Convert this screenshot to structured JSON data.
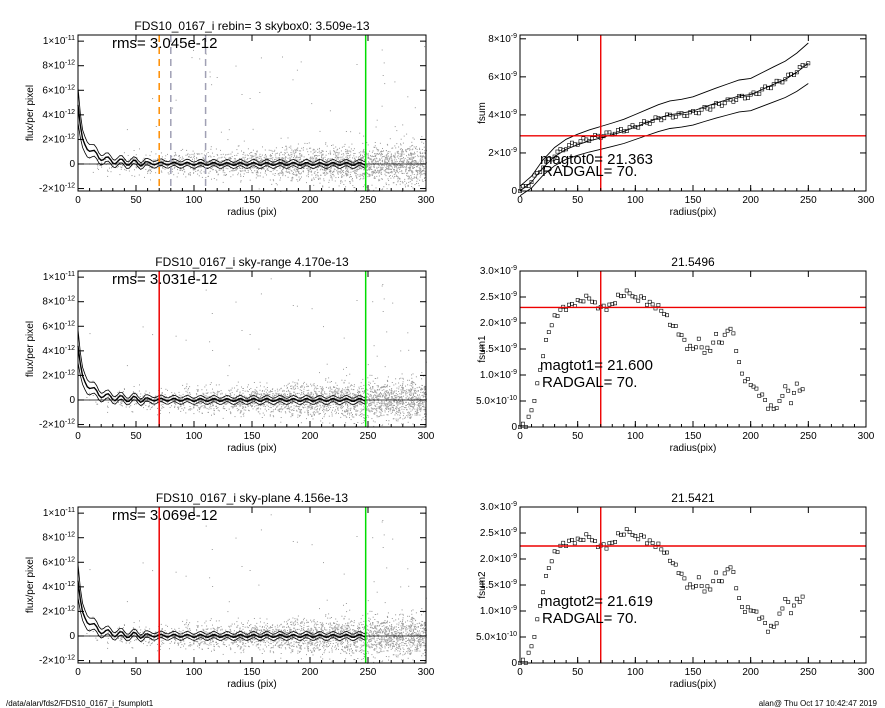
{
  "chart_data": [
    {
      "type": "scatter",
      "title": "FDS10_0167_i rebin= 3    skybox0:  3.509e-13",
      "annotation": "rms= 3.045e-12",
      "xlabel": "radius (pix)",
      "ylabel": "flux/per pixel",
      "xlim": [
        0,
        300
      ],
      "ylim": [
        -2.2e-12,
        1.05e-11
      ],
      "xticks": [
        "0",
        "50",
        "100",
        "150",
        "200",
        "250",
        "300"
      ],
      "yticks": [
        {
          "v": 1e-11,
          "m": "1×10",
          "e": "-11"
        },
        {
          "v": 8e-12,
          "m": "8×10",
          "e": "-12"
        },
        {
          "v": 6e-12,
          "m": "6×10",
          "e": "-12"
        },
        {
          "v": 4e-12,
          "m": "4×10",
          "e": "-12"
        },
        {
          "v": 2e-12,
          "m": "2×10",
          "e": "-12"
        },
        {
          "v": 0,
          "m": "0",
          "e": ""
        },
        {
          "v": -2e-12,
          "m": "-2×10",
          "e": "-12"
        }
      ],
      "vlines": [
        {
          "x": 70,
          "color": "#ff8c00",
          "dash": true
        },
        {
          "x": 80,
          "color": "#a0a0b4",
          "dash": true
        },
        {
          "x": 110,
          "color": "#a0a0b4",
          "dash": true
        },
        {
          "x": 248,
          "color": "#00dd00",
          "dash": false
        }
      ],
      "profile": {
        "x": [
          0,
          3,
          6,
          9,
          12,
          15,
          18,
          21,
          24,
          27,
          30,
          35,
          40,
          45,
          50,
          60,
          70,
          80,
          90,
          100,
          120,
          150,
          180,
          210,
          248
        ],
        "y": [
          4.8e-12,
          2e-12,
          1.6e-12,
          1.3e-12,
          1e-12,
          8e-13,
          6e-13,
          5e-13,
          4e-13,
          3e-13,
          2.5e-13,
          2e-13,
          1.5e-13,
          1e-13,
          8e-14,
          6e-14,
          4e-14,
          3e-14,
          2e-14,
          1e-14,
          0,
          0,
          0,
          0,
          0
        ]
      },
      "noise_sigma": 3.045e-12
    },
    {
      "type": "line",
      "title": "",
      "annotation": [
        "magtot0=  21.363",
        "RADGAL=     70."
      ],
      "xlabel": "radius(pix)",
      "ylabel": "fsum",
      "xlim": [
        0,
        300
      ],
      "ylim": [
        0,
        8.2e-09
      ],
      "xticks": [
        "0",
        "50",
        "100",
        "150",
        "200",
        "250",
        "300"
      ],
      "yticks": [
        {
          "v": 8e-09,
          "m": "8×10",
          "e": "-9"
        },
        {
          "v": 6e-09,
          "m": "6×10",
          "e": "-9"
        },
        {
          "v": 4e-09,
          "m": "4×10",
          "e": "-9"
        },
        {
          "v": 2e-09,
          "m": "2×10",
          "e": "-9"
        },
        {
          "v": 0,
          "m": "0",
          "e": ""
        }
      ],
      "hline": 2.9e-09,
      "vline": 70,
      "series": [
        {
          "x": [
            0,
            10,
            20,
            30,
            40,
            50,
            60,
            70,
            80,
            90,
            100,
            110,
            120,
            130,
            140,
            150,
            160,
            170,
            180,
            190,
            200,
            210,
            220,
            230,
            240,
            250
          ],
          "y": [
            0,
            5e-10,
            1.3e-09,
            1.9e-09,
            2.3e-09,
            2.55e-09,
            2.75e-09,
            2.9e-09,
            3.05e-09,
            3.2e-09,
            3.4e-09,
            3.6e-09,
            3.8e-09,
            3.95e-09,
            4e-09,
            4.1e-09,
            4.3e-09,
            4.5e-09,
            4.7e-09,
            4.9e-09,
            5e-09,
            5.3e-09,
            5.6e-09,
            5.9e-09,
            6.3e-09,
            6.8e-09
          ]
        }
      ]
    },
    {
      "type": "scatter",
      "title": "FDS10_0167_i sky-range  4.170e-13",
      "annotation": "rms= 3.031e-12",
      "xlabel": "radius (pix)",
      "ylabel": "flux/per pixel",
      "xlim": [
        0,
        300
      ],
      "ylim": [
        -2.2e-12,
        1.05e-11
      ],
      "xticks": [
        "0",
        "50",
        "100",
        "150",
        "200",
        "250",
        "300"
      ],
      "yticks": [
        {
          "v": 1e-11,
          "m": "1×10",
          "e": "-11"
        },
        {
          "v": 8e-12,
          "m": "8×10",
          "e": "-12"
        },
        {
          "v": 6e-12,
          "m": "6×10",
          "e": "-12"
        },
        {
          "v": 4e-12,
          "m": "4×10",
          "e": "-12"
        },
        {
          "v": 2e-12,
          "m": "2×10",
          "e": "-12"
        },
        {
          "v": 0,
          "m": "0",
          "e": ""
        },
        {
          "v": -2e-12,
          "m": "-2×10",
          "e": "-12"
        }
      ],
      "vlines": [
        {
          "x": 70,
          "color": "#ee0000",
          "dash": false
        },
        {
          "x": 248,
          "color": "#00dd00",
          "dash": false
        }
      ],
      "profile": {
        "x": [
          0,
          3,
          6,
          9,
          12,
          15,
          18,
          21,
          24,
          27,
          30,
          35,
          40,
          45,
          50,
          60,
          70,
          80,
          90,
          100,
          120,
          150,
          180,
          210,
          248
        ],
        "y": [
          4.4e-12,
          1.9e-12,
          1.5e-12,
          1.2e-12,
          9e-13,
          7e-13,
          5e-13,
          4e-13,
          3e-13,
          2.5e-13,
          2e-13,
          1.5e-13,
          1e-13,
          8e-14,
          6e-14,
          4e-14,
          3e-14,
          2e-14,
          1e-14,
          0,
          0,
          0,
          0,
          0,
          0
        ]
      },
      "noise_sigma": 3.031e-12
    },
    {
      "type": "scatter",
      "title": "21.5496",
      "annotation": [
        "magtot1=  21.600",
        "RADGAL=     70."
      ],
      "xlabel": "radius(pix)",
      "ylabel": "fsum1",
      "xlim": [
        0,
        300
      ],
      "ylim": [
        0,
        3e-09
      ],
      "xticks": [
        "0",
        "50",
        "100",
        "150",
        "200",
        "250",
        "300"
      ],
      "yticks": [
        {
          "v": 3e-09,
          "m": "3.0×10",
          "e": "-9"
        },
        {
          "v": 2.5e-09,
          "m": "2.5×10",
          "e": "-9"
        },
        {
          "v": 2e-09,
          "m": "2.0×10",
          "e": "-9"
        },
        {
          "v": 1.5e-09,
          "m": "1.5×10",
          "e": "-9"
        },
        {
          "v": 1e-09,
          "m": "1.0×10",
          "e": "-9"
        },
        {
          "v": 5e-10,
          "m": "5.0×10",
          "e": "-10"
        },
        {
          "v": 0,
          "m": "0",
          "e": ""
        }
      ],
      "hline": 2.3e-09,
      "vline": 70,
      "series": [
        {
          "x": [
            0,
            5,
            10,
            15,
            20,
            25,
            30,
            35,
            40,
            45,
            50,
            55,
            60,
            65,
            70,
            75,
            80,
            85,
            90,
            95,
            100,
            105,
            110,
            115,
            120,
            125,
            130,
            135,
            140,
            145,
            150,
            155,
            160,
            165,
            170,
            175,
            180,
            185,
            190,
            195,
            200,
            205,
            210,
            215,
            220,
            225,
            230,
            235,
            240,
            245
          ],
          "y": [
            0,
            5e-11,
            3e-10,
            8e-10,
            1.4e-09,
            1.85e-09,
            2.1e-09,
            2.25e-09,
            2.3e-09,
            2.35e-09,
            2.4e-09,
            2.45e-09,
            2.5e-09,
            2.35e-09,
            2.3e-09,
            2.3e-09,
            2.35e-09,
            2.5e-09,
            2.55e-09,
            2.6e-09,
            2.45e-09,
            2.5e-09,
            2.4e-09,
            2.35e-09,
            2.3e-09,
            2.2e-09,
            2e-09,
            1.9e-09,
            1.75e-09,
            1.55e-09,
            1.5e-09,
            1.65e-09,
            1.45e-09,
            1.5e-09,
            1.75e-09,
            1.6e-09,
            1.9e-09,
            1.8e-09,
            1.2e-09,
            9e-10,
            8.5e-10,
            7e-10,
            6e-10,
            4e-10,
            3.5e-10,
            4.5e-10,
            8e-10,
            5e-10,
            8e-10,
            7e-10
          ]
        }
      ]
    },
    {
      "type": "scatter",
      "title": "FDS10_0167_i sky-plane  4.156e-13",
      "annotation": "rms= 3.069e-12",
      "xlabel": "radius (pix)",
      "ylabel": "flux/per pixel",
      "xlim": [
        0,
        300
      ],
      "ylim": [
        -2.2e-12,
        1.05e-11
      ],
      "xticks": [
        "0",
        "50",
        "100",
        "150",
        "200",
        "250",
        "300"
      ],
      "yticks": [
        {
          "v": 1e-11,
          "m": "1×10",
          "e": "-11"
        },
        {
          "v": 8e-12,
          "m": "8×10",
          "e": "-12"
        },
        {
          "v": 6e-12,
          "m": "6×10",
          "e": "-12"
        },
        {
          "v": 4e-12,
          "m": "4×10",
          "e": "-12"
        },
        {
          "v": 2e-12,
          "m": "2×10",
          "e": "-12"
        },
        {
          "v": 0,
          "m": "0",
          "e": ""
        },
        {
          "v": -2e-12,
          "m": "-2×10",
          "e": "-12"
        }
      ],
      "vlines": [
        {
          "x": 70,
          "color": "#ee0000",
          "dash": false
        },
        {
          "x": 248,
          "color": "#00dd00",
          "dash": false
        }
      ],
      "profile": {
        "x": [
          0,
          3,
          6,
          9,
          12,
          15,
          18,
          21,
          24,
          27,
          30,
          35,
          40,
          45,
          50,
          60,
          70,
          80,
          90,
          100,
          120,
          150,
          180,
          210,
          248
        ],
        "y": [
          4.5e-12,
          1.9e-12,
          1.5e-12,
          1.2e-12,
          9e-13,
          7e-13,
          5e-13,
          4e-13,
          3e-13,
          2.5e-13,
          2e-13,
          1.5e-13,
          1e-13,
          8e-14,
          6e-14,
          4e-14,
          3e-14,
          2e-14,
          1e-14,
          0,
          0,
          0,
          0,
          0,
          0
        ]
      },
      "noise_sigma": 3.069e-12
    },
    {
      "type": "scatter",
      "title": "21.5421",
      "annotation": [
        "magtot2=  21.619",
        "RADGAL=     70."
      ],
      "xlabel": "radius(pix)",
      "ylabel": "fsum2",
      "xlim": [
        0,
        300
      ],
      "ylim": [
        0,
        3e-09
      ],
      "xticks": [
        "0",
        "50",
        "100",
        "150",
        "200",
        "250",
        "300"
      ],
      "yticks": [
        {
          "v": 3e-09,
          "m": "3.0×10",
          "e": "-9"
        },
        {
          "v": 2.5e-09,
          "m": "2.5×10",
          "e": "-9"
        },
        {
          "v": 2e-09,
          "m": "2.0×10",
          "e": "-9"
        },
        {
          "v": 1.5e-09,
          "m": "1.5×10",
          "e": "-9"
        },
        {
          "v": 1e-09,
          "m": "1.0×10",
          "e": "-9"
        },
        {
          "v": 5e-10,
          "m": "5.0×10",
          "e": "-10"
        },
        {
          "v": 0,
          "m": "0",
          "e": ""
        }
      ],
      "hline": 2.25e-09,
      "vline": 70,
      "series": [
        {
          "x": [
            0,
            5,
            10,
            15,
            20,
            25,
            30,
            35,
            40,
            45,
            50,
            55,
            60,
            65,
            70,
            75,
            80,
            85,
            90,
            95,
            100,
            105,
            110,
            115,
            120,
            125,
            130,
            135,
            140,
            145,
            150,
            155,
            160,
            165,
            170,
            175,
            180,
            185,
            190,
            195,
            200,
            205,
            210,
            215,
            220,
            225,
            230,
            235,
            240,
            245
          ],
          "y": [
            0,
            5e-11,
            3e-10,
            8e-10,
            1.4e-09,
            1.85e-09,
            2.1e-09,
            2.25e-09,
            2.3e-09,
            2.35e-09,
            2.35e-09,
            2.4e-09,
            2.45e-09,
            2.3e-09,
            2.25e-09,
            2.25e-09,
            2.3e-09,
            2.45e-09,
            2.5e-09,
            2.55e-09,
            2.4e-09,
            2.45e-09,
            2.35e-09,
            2.3e-09,
            2.25e-09,
            2.15e-09,
            2e-09,
            1.85e-09,
            1.7e-09,
            1.5e-09,
            1.45e-09,
            1.6e-09,
            1.4e-09,
            1.45e-09,
            1.7e-09,
            1.55e-09,
            1.85e-09,
            1.75e-09,
            1.2e-09,
            1e-09,
            1.05e-09,
            9.5e-10,
            8.5e-10,
            6.5e-10,
            7e-10,
            9e-10,
            1.25e-09,
            1e-09,
            1.2e-09,
            1.25e-09
          ]
        }
      ]
    }
  ],
  "footer": {
    "left": "/data/alan/fds2/FDS10_0167_i_fsumplot1",
    "right": "alan@  Thu Oct 17 10:42:47 2019"
  }
}
